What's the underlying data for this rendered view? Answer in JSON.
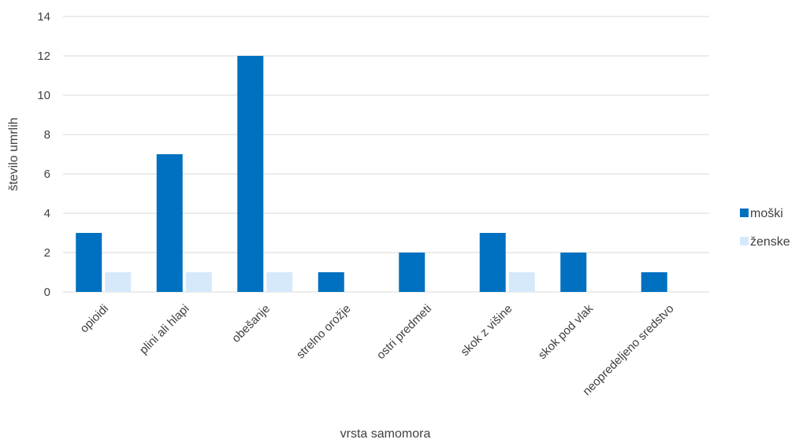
{
  "chart_data": {
    "type": "bar",
    "title": "",
    "xlabel": "vrsta samomora",
    "ylabel": "število umrlih",
    "ylim": [
      0,
      14
    ],
    "yticks": [
      0,
      2,
      4,
      6,
      8,
      10,
      12,
      14
    ],
    "grid": true,
    "legend_position": "right",
    "categories": [
      "opioidi",
      "plini ali hlapi",
      "obešanje",
      "strelno orožje",
      "ostri predmeti",
      "skok z višine",
      "skok pod vlak",
      "neopredeljeno sredstvo"
    ],
    "series": [
      {
        "name": "moški",
        "color": "#0070c0",
        "values": [
          3,
          7,
          12,
          1,
          2,
          3,
          2,
          1
        ]
      },
      {
        "name": "ženske",
        "color": "#d6e9fb",
        "values": [
          1,
          1,
          1,
          0,
          0,
          1,
          0,
          0
        ]
      }
    ]
  }
}
